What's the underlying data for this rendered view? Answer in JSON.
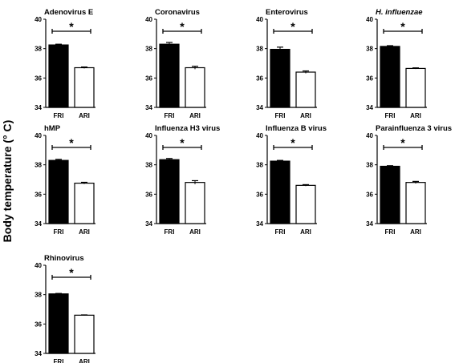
{
  "figure": {
    "ylabel": "Body temperature (° C)"
  },
  "chart_data": [
    {
      "type": "bar",
      "title": "Adenovirus E",
      "italic": false,
      "categories": [
        "FRI",
        "ARI"
      ],
      "values": [
        38.25,
        36.7
      ],
      "errors": [
        0.05,
        0.05
      ],
      "ylim": [
        34,
        40
      ],
      "yticks": [
        34,
        36,
        38,
        40
      ],
      "significance": "*",
      "bar_fill": [
        "#000000",
        "#ffffff"
      ]
    },
    {
      "type": "bar",
      "title": "Coronavirus",
      "italic": false,
      "categories": [
        "FRI",
        "ARI"
      ],
      "values": [
        38.3,
        36.7
      ],
      "errors": [
        0.12,
        0.1
      ],
      "ylim": [
        34,
        40
      ],
      "yticks": [
        34,
        36,
        38,
        40
      ],
      "significance": "*",
      "bar_fill": [
        "#000000",
        "#ffffff"
      ]
    },
    {
      "type": "bar",
      "title": "Enterovirus",
      "italic": false,
      "categories": [
        "FRI",
        "ARI"
      ],
      "values": [
        37.95,
        36.4
      ],
      "errors": [
        0.15,
        0.08
      ],
      "ylim": [
        34,
        40
      ],
      "yticks": [
        34,
        36,
        38,
        40
      ],
      "significance": "*",
      "bar_fill": [
        "#000000",
        "#ffffff"
      ]
    },
    {
      "type": "bar",
      "title": "H. influenzae",
      "italic": true,
      "categories": [
        "FRI",
        "ARI"
      ],
      "values": [
        38.15,
        36.65
      ],
      "errors": [
        0.05,
        0.04
      ],
      "ylim": [
        34,
        40
      ],
      "yticks": [
        34,
        36,
        38,
        40
      ],
      "significance": "*",
      "bar_fill": [
        "#000000",
        "#ffffff"
      ]
    },
    {
      "type": "bar",
      "title": "hMP",
      "italic": false,
      "categories": [
        "FRI",
        "ARI"
      ],
      "values": [
        38.3,
        36.75
      ],
      "errors": [
        0.07,
        0.06
      ],
      "ylim": [
        34,
        40
      ],
      "yticks": [
        34,
        36,
        38,
        40
      ],
      "significance": "*",
      "bar_fill": [
        "#000000",
        "#ffffff"
      ]
    },
    {
      "type": "bar",
      "title": "Influenza H3 virus",
      "italic": false,
      "categories": [
        "FRI",
        "ARI"
      ],
      "values": [
        38.35,
        36.8
      ],
      "errors": [
        0.08,
        0.12
      ],
      "ylim": [
        34,
        40
      ],
      "yticks": [
        34,
        36,
        38,
        40
      ],
      "significance": "*",
      "bar_fill": [
        "#000000",
        "#ffffff"
      ]
    },
    {
      "type": "bar",
      "title": "Influenza B virus",
      "italic": false,
      "categories": [
        "FRI",
        "ARI"
      ],
      "values": [
        38.25,
        36.6
      ],
      "errors": [
        0.05,
        0.05
      ],
      "ylim": [
        34,
        40
      ],
      "yticks": [
        34,
        36,
        38,
        40
      ],
      "significance": "*",
      "bar_fill": [
        "#000000",
        "#ffffff"
      ]
    },
    {
      "type": "bar",
      "title": "Parainfluenza 3 virus",
      "italic": false,
      "categories": [
        "FRI",
        "ARI"
      ],
      "values": [
        37.9,
        36.8
      ],
      "errors": [
        0.04,
        0.07
      ],
      "ylim": [
        34,
        40
      ],
      "yticks": [
        34,
        36,
        38,
        40
      ],
      "significance": "*",
      "bar_fill": [
        "#000000",
        "#ffffff"
      ]
    },
    {
      "type": "bar",
      "title": "Rhinovirus",
      "italic": false,
      "categories": [
        "FRI",
        "ARI"
      ],
      "values": [
        38.05,
        36.6
      ],
      "errors": [
        0.03,
        0.02
      ],
      "ylim": [
        34,
        40
      ],
      "yticks": [
        34,
        36,
        38,
        40
      ],
      "significance": "*",
      "bar_fill": [
        "#000000",
        "#ffffff"
      ]
    }
  ]
}
